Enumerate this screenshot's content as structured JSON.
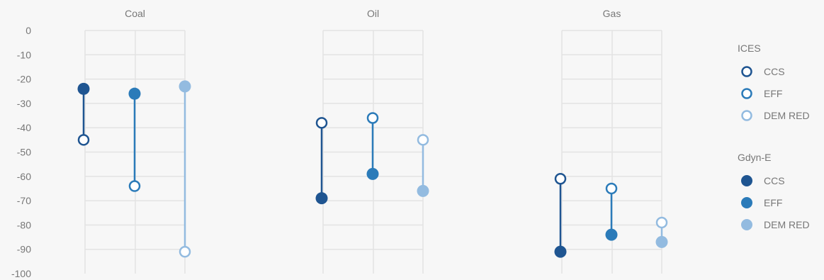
{
  "chart_data": {
    "type": "dumbbell",
    "panels": [
      "Coal",
      "Oil",
      "Gas"
    ],
    "categories": [
      "CCS",
      "EFF",
      "DEM RED"
    ],
    "ylim": [
      -100,
      0
    ],
    "yticks": [
      0,
      -10,
      -20,
      -30,
      -40,
      -50,
      -60,
      -70,
      -80,
      -90,
      -100
    ],
    "grid": true,
    "colors": {
      "CCS": "#1f5591",
      "EFF": "#2b7bb9",
      "DEM RED": "#93bbe0"
    },
    "series": [
      {
        "name": "ICES",
        "marker": "open",
        "values": {
          "Coal": [
            -45,
            -64,
            -91
          ],
          "Oil": [
            -38,
            -36,
            -45
          ],
          "Gas": [
            -61,
            -65,
            -79
          ]
        }
      },
      {
        "name": "Gdyn-E",
        "marker": "filled",
        "values": {
          "Coal": [
            -24,
            -26,
            -23
          ],
          "Oil": [
            -69,
            -59,
            -66
          ],
          "Gas": [
            -91,
            -84,
            -87
          ]
        }
      }
    ],
    "legend": {
      "position": "right",
      "groups": [
        {
          "title": "ICES",
          "marker": "open",
          "items": [
            "CCS",
            "EFF",
            "DEM RED"
          ]
        },
        {
          "title": "Gdyn-E",
          "marker": "filled",
          "items": [
            "CCS",
            "EFF",
            "DEM RED"
          ]
        }
      ]
    }
  }
}
